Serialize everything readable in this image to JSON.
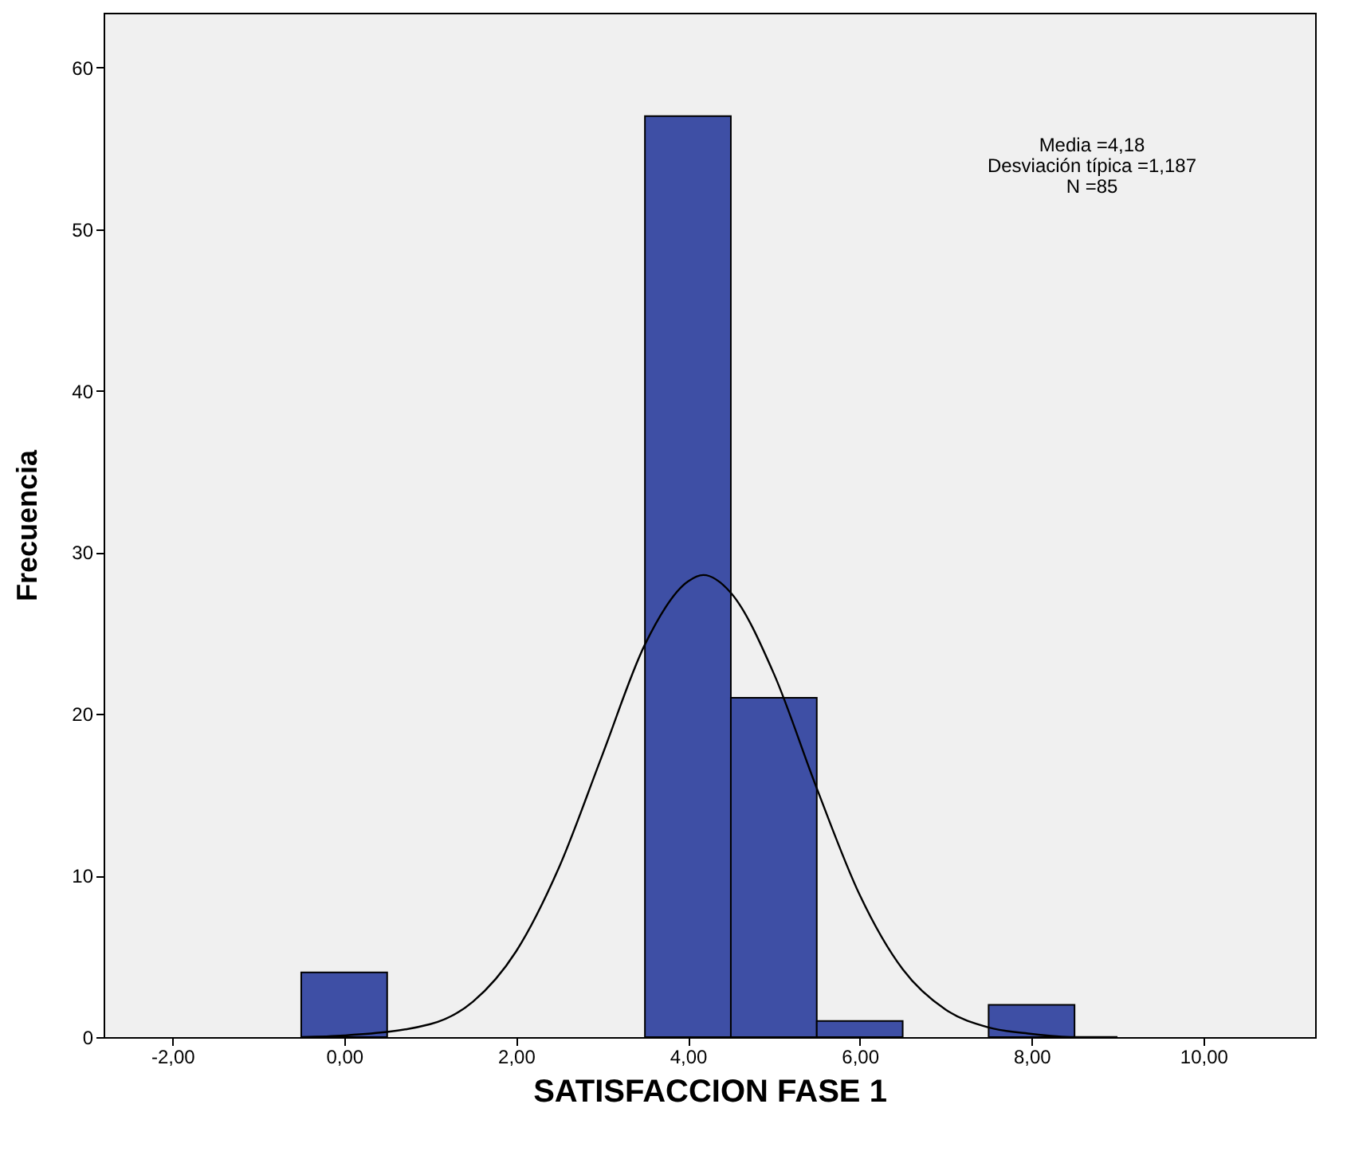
{
  "chart_data": {
    "type": "histogram",
    "xlabel": "SATISFACCION FASE 1",
    "ylabel": "Frecuencia",
    "annotations": [
      "Media =4,18",
      "Desviación típica =1,187",
      "N =85"
    ],
    "xlim": [
      -2.8,
      11.3
    ],
    "xticks": [
      {
        "value": -2,
        "label": "-2,00"
      },
      {
        "value": 0,
        "label": "0,00"
      },
      {
        "value": 2,
        "label": "2,00"
      },
      {
        "value": 4,
        "label": "4,00"
      },
      {
        "value": 6,
        "label": "6,00"
      },
      {
        "value": 8,
        "label": "8,00"
      },
      {
        "value": 10,
        "label": "10,00"
      }
    ],
    "ylim": [
      0,
      63.4
    ],
    "yticks": [
      0,
      10,
      20,
      30,
      40,
      50,
      60
    ],
    "color": "#3e4fa5",
    "bins": [
      -0.5,
      0.5,
      1.5,
      2.5,
      3.5,
      4.5,
      5.5,
      6.5,
      7.5,
      8.5
    ],
    "values": [
      4,
      0,
      0,
      0,
      57,
      21,
      1,
      0,
      2
    ],
    "series": [
      {
        "type": "line",
        "color": "#000000",
        "x": [
          -0.5,
          0,
          1,
          1.5,
          2,
          2.5,
          3,
          3.5,
          4,
          4.18,
          4.5,
          5,
          5.5,
          6,
          6.5,
          7,
          7.5,
          8,
          8.5,
          9
        ],
        "values": [
          0,
          0.1,
          0.8,
          2.2,
          5.3,
          10.5,
          17.4,
          24.3,
          28.2,
          28.6,
          27.5,
          22.5,
          15.4,
          8.8,
          4.2,
          1.7,
          0.6,
          0.2,
          0,
          0
        ]
      }
    ]
  }
}
